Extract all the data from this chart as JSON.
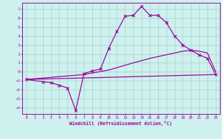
{
  "bg_color": "#cef0ee",
  "grid_color": "#a8d8cc",
  "line_color": "#990099",
  "xlabel": "Windchill (Refroidissement éolien,°C)",
  "xlim": [
    -0.5,
    23.5
  ],
  "ylim": [
    -4.7,
    7.7
  ],
  "xticks": [
    0,
    1,
    2,
    3,
    4,
    5,
    6,
    7,
    8,
    9,
    10,
    11,
    12,
    13,
    14,
    15,
    16,
    17,
    18,
    19,
    20,
    21,
    22,
    23
  ],
  "yticks": [
    -4,
    -3,
    -2,
    -1,
    0,
    1,
    2,
    3,
    4,
    5,
    6,
    7
  ],
  "line1_x": [
    0,
    23
  ],
  "line1_y": [
    -0.85,
    -0.3
  ],
  "line2_x": [
    0,
    7,
    10,
    13,
    15,
    17,
    19,
    20,
    21,
    22,
    23
  ],
  "line2_y": [
    -0.85,
    -0.3,
    0.2,
    1.0,
    1.5,
    1.9,
    2.3,
    2.4,
    2.3,
    2.1,
    0.0
  ],
  "line3_x": [
    0,
    2,
    3,
    4,
    5,
    6,
    7,
    8,
    9,
    10,
    11,
    12,
    13,
    14,
    15,
    16,
    17,
    18,
    19,
    20,
    21,
    22,
    23
  ],
  "line3_y": [
    -0.85,
    -1.1,
    -1.2,
    -1.5,
    -1.8,
    -4.3,
    -0.2,
    0.1,
    0.3,
    2.6,
    4.5,
    6.2,
    6.3,
    7.3,
    6.3,
    6.3,
    5.5,
    4.0,
    3.0,
    2.4,
    1.9,
    1.5,
    -0.3
  ]
}
